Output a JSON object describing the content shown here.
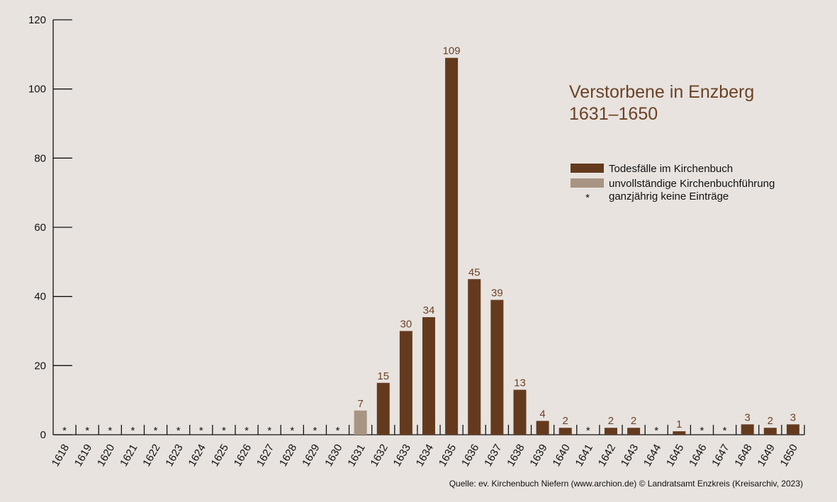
{
  "chart_data": {
    "type": "bar",
    "title": "Verstorbene in Enzberg",
    "subtitle": "1631–1650",
    "categories": [
      "1618",
      "1619",
      "1620",
      "1621",
      "1622",
      "1623",
      "1624",
      "1625",
      "1626",
      "1627",
      "1628",
      "1629",
      "1630",
      "1631",
      "1632",
      "1633",
      "1634",
      "1635",
      "1636",
      "1637",
      "1638",
      "1639",
      "1640",
      "1641",
      "1642",
      "1643",
      "1644",
      "1645",
      "1646",
      "1647",
      "1648",
      "1649",
      "1650"
    ],
    "series": [
      {
        "name": "Todesfälle im Kirchenbuch",
        "color": "#643a1e",
        "values": [
          null,
          null,
          null,
          null,
          null,
          null,
          null,
          null,
          null,
          null,
          null,
          null,
          null,
          null,
          15,
          30,
          34,
          109,
          45,
          39,
          13,
          4,
          2,
          null,
          2,
          2,
          null,
          1,
          null,
          null,
          3,
          2,
          3
        ]
      },
      {
        "name": "unvollständige Kirchenbuchführung",
        "color": "#a89483",
        "values": [
          null,
          null,
          null,
          null,
          null,
          null,
          null,
          null,
          null,
          null,
          null,
          null,
          null,
          7,
          null,
          null,
          null,
          null,
          null,
          null,
          null,
          null,
          null,
          null,
          null,
          null,
          null,
          null,
          null,
          null,
          null,
          null,
          null
        ]
      }
    ],
    "no_entry_symbol": "*",
    "no_entry_label": "ganzjährig keine Einträge",
    "ylim": [
      0,
      120
    ],
    "yticks": [
      0,
      20,
      40,
      60,
      80,
      100,
      120
    ],
    "source": "Quelle: ev. Kirchenbuch Niefern (www.archion.de)  © Landratsamt Enzkreis (Kreisarchiv, 2023)"
  }
}
